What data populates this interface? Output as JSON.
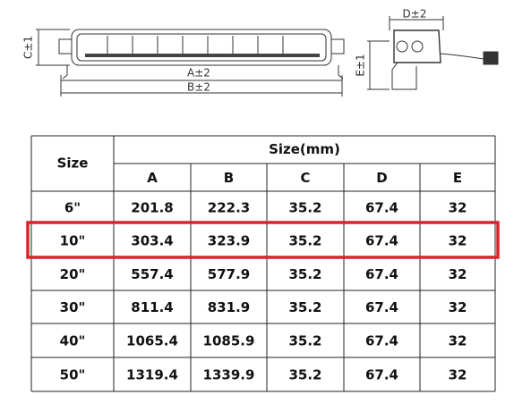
{
  "diagram": {
    "labels": {
      "a": "A±2",
      "b": "B±2",
      "c": "C±1",
      "d": "D±2",
      "e": "E±1"
    }
  },
  "table": {
    "header": {
      "size": "Size",
      "group": "Size(mm)",
      "columns": [
        "A",
        "B",
        "C",
        "D",
        "E"
      ]
    },
    "rows": [
      [
        "6\"",
        "201.8",
        "222.3",
        "35.2",
        "67.4",
        "32"
      ],
      [
        "10\"",
        "303.4",
        "323.9",
        "35.2",
        "67.4",
        "32"
      ],
      [
        "20\"",
        "557.4",
        "577.9",
        "35.2",
        "67.4",
        "32"
      ],
      [
        "30\"",
        "811.4",
        "831.9",
        "35.2",
        "67.4",
        "32"
      ],
      [
        "40\"",
        "1065.4",
        "1085.9",
        "35.2",
        "67.4",
        "32"
      ],
      [
        "50\"",
        "1319.4",
        "1339.9",
        "35.2",
        "67.4",
        "32"
      ]
    ],
    "highlight_row": 1
  }
}
